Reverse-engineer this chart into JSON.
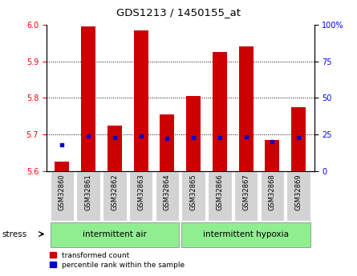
{
  "title": "GDS1213 / 1450155_at",
  "samples": [
    "GSM32860",
    "GSM32861",
    "GSM32862",
    "GSM32863",
    "GSM32864",
    "GSM32865",
    "GSM32866",
    "GSM32867",
    "GSM32868",
    "GSM32869"
  ],
  "red_bar_tops": [
    5.625,
    5.995,
    5.725,
    5.985,
    5.755,
    5.805,
    5.925,
    5.94,
    5.685,
    5.775
  ],
  "blue_marker_vals": [
    5.672,
    5.695,
    5.692,
    5.696,
    5.69,
    5.691,
    5.692,
    5.694,
    5.68,
    5.692
  ],
  "bar_bottom": 5.6,
  "ylim_left": [
    5.6,
    6.0
  ],
  "ylim_right": [
    0,
    100
  ],
  "yticks_left": [
    5.6,
    5.7,
    5.8,
    5.9,
    6.0
  ],
  "yticks_right": [
    0,
    25,
    50,
    75,
    100
  ],
  "ytick_labels_right": [
    "0",
    "25",
    "50",
    "75",
    "100%"
  ],
  "group1_label": "intermittent air",
  "group2_label": "intermittent hypoxia",
  "group_color": "#90EE90",
  "stress_label": "stress",
  "bar_color": "#CC0000",
  "blue_color": "#0000CC",
  "tick_bg_color": "#d3d3d3",
  "legend_red_label": "transformed count",
  "legend_blue_label": "percentile rank within the sample"
}
